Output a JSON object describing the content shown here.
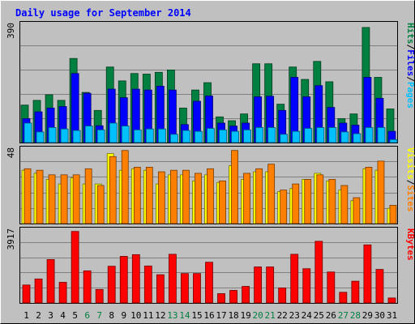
{
  "chart_data": [
    {
      "type": "bar",
      "title": "Daily usage for September 2014",
      "panel": "top",
      "y_max_label": "390",
      "ylim": [
        0,
        390
      ],
      "categories": [
        "1",
        "2",
        "3",
        "4",
        "5",
        "6",
        "7",
        "8",
        "9",
        "10",
        "11",
        "12",
        "13",
        "14",
        "15",
        "16",
        "17",
        "18",
        "19",
        "20",
        "21",
        "22",
        "23",
        "24",
        "25",
        "26",
        "27",
        "28",
        "29",
        "30",
        "31"
      ],
      "series": [
        {
          "name": "Hits",
          "color": "#008040",
          "values": [
            127,
            143,
            162,
            143,
            285,
            170,
            109,
            256,
            209,
            234,
            232,
            238,
            246,
            117,
            178,
            203,
            87,
            74,
            97,
            267,
            267,
            130,
            256,
            214,
            275,
            206,
            81,
            97,
            390,
            221,
            114
          ]
        },
        {
          "name": "Files",
          "color": "#0000ff",
          "values": [
            81,
            104,
            117,
            122,
            234,
            167,
            57,
            181,
            152,
            181,
            178,
            191,
            178,
            61,
            140,
            158,
            66,
            56,
            66,
            155,
            157,
            109,
            221,
            155,
            193,
            119,
            66,
            59,
            221,
            150,
            38
          ]
        },
        {
          "name": "Pages",
          "color": "#00c0ff",
          "values": [
            66,
            36,
            51,
            46,
            41,
            56,
            43,
            66,
            56,
            43,
            46,
            46,
            28,
            41,
            38,
            48,
            43,
            38,
            43,
            51,
            51,
            28,
            38,
            48,
            51,
            51,
            36,
            30,
            51,
            51,
            10
          ]
        }
      ],
      "right_labels": [
        "Pages",
        "/",
        "Files",
        "/",
        "Hits"
      ],
      "right_label_colors": [
        "#00c0ff",
        "#000000",
        "#0000ff",
        "#000000",
        "#008040"
      ]
    },
    {
      "type": "bar",
      "panel": "middle",
      "y_max_label": "48",
      "ylim": [
        0,
        48
      ],
      "categories": [
        "1",
        "2",
        "3",
        "4",
        "5",
        "6",
        "7",
        "8",
        "9",
        "10",
        "11",
        "12",
        "13",
        "14",
        "15",
        "16",
        "17",
        "18",
        "19",
        "20",
        "21",
        "22",
        "23",
        "24",
        "25",
        "26",
        "27",
        "28",
        "29",
        "30",
        "31"
      ],
      "series": [
        {
          "name": "Visits",
          "color": "#ffff00",
          "values": [
            35,
            33,
            29,
            26,
            30,
            26,
            26,
            46,
            35,
            36,
            35,
            26,
            32,
            32,
            28,
            32,
            27,
            38,
            29,
            34,
            34,
            21,
            23,
            29,
            33,
            28,
            22,
            15,
            36,
            35,
            10
          ]
        },
        {
          "name": "Sites",
          "color": "#ff8000",
          "values": [
            36,
            35,
            32,
            32,
            32,
            36,
            25,
            44,
            48,
            37,
            37,
            34,
            35,
            35,
            33,
            36,
            28,
            48,
            33,
            36,
            39,
            22,
            26,
            29,
            32,
            29,
            25,
            17,
            37,
            41,
            12
          ]
        }
      ],
      "right_labels": [
        "Sites",
        "/",
        "Visits"
      ],
      "right_label_colors": [
        "#ff8000",
        "#000000",
        "#ffff00"
      ]
    },
    {
      "type": "bar",
      "panel": "bottom",
      "y_max_label": "3917",
      "ylim": [
        0,
        3917
      ],
      "categories": [
        "1",
        "2",
        "3",
        "4",
        "5",
        "6",
        "7",
        "8",
        "9",
        "10",
        "11",
        "12",
        "13",
        "14",
        "15",
        "16",
        "17",
        "18",
        "19",
        "20",
        "21",
        "22",
        "23",
        "24",
        "25",
        "26",
        "27",
        "28",
        "29",
        "30",
        "31"
      ],
      "x_label_colors": [
        "#000000",
        "#000000",
        "#000000",
        "#000000",
        "#000000",
        "#008040",
        "#008040",
        "#000000",
        "#000000",
        "#000000",
        "#000000",
        "#000000",
        "#008040",
        "#008040",
        "#000000",
        "#000000",
        "#000000",
        "#000000",
        "#000000",
        "#008040",
        "#008040",
        "#000000",
        "#000000",
        "#000000",
        "#000000",
        "#000000",
        "#008040",
        "#008040",
        "#000000",
        "#000000",
        "#000000"
      ],
      "series": [
        {
          "name": "KBytes",
          "color": "#ff0000",
          "values": [
            983,
            1314,
            2378,
            1130,
            3917,
            1757,
            739,
            2010,
            2551,
            2645,
            2025,
            1545,
            2664,
            1611,
            1611,
            2230,
            510,
            688,
            906,
            1973,
            1973,
            822,
            2664,
            1875,
            3376,
            1695,
            584,
            1191,
            3180,
            1836,
            272
          ]
        }
      ],
      "right_labels": [
        "KBytes"
      ],
      "right_label_colors": [
        "#ff0000"
      ]
    }
  ],
  "colors": {
    "background": "#c0c0c0",
    "outer_border": "#ffffff",
    "title": "#0000ff",
    "grid": "#808080"
  }
}
